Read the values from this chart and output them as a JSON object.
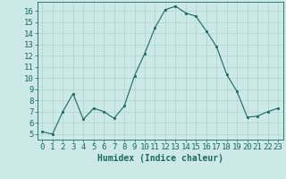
{
  "x": [
    0,
    1,
    2,
    3,
    4,
    5,
    6,
    7,
    8,
    9,
    10,
    11,
    12,
    13,
    14,
    15,
    16,
    17,
    18,
    19,
    20,
    21,
    22,
    23
  ],
  "y": [
    5.2,
    5.0,
    7.0,
    8.6,
    6.3,
    7.3,
    7.0,
    6.4,
    7.5,
    10.2,
    12.2,
    14.5,
    16.1,
    16.4,
    15.8,
    15.5,
    14.2,
    12.8,
    10.3,
    8.8,
    6.5,
    6.6,
    7.0,
    7.3
  ],
  "line_color": "#1a6b5a",
  "marker": "s",
  "marker_size": 2.0,
  "bg_color": "#cce9e7",
  "grid_color": "#aad4d0",
  "xlabel": "Humidex (Indice chaleur)",
  "xlim": [
    -0.5,
    23.5
  ],
  "ylim": [
    4.5,
    16.8
  ],
  "yticks": [
    5,
    6,
    7,
    8,
    9,
    10,
    11,
    12,
    13,
    14,
    15,
    16
  ],
  "xticks": [
    0,
    1,
    2,
    3,
    4,
    5,
    6,
    7,
    8,
    9,
    10,
    11,
    12,
    13,
    14,
    15,
    16,
    17,
    18,
    19,
    20,
    21,
    22,
    23
  ],
  "xtick_labels": [
    "0",
    "1",
    "2",
    "3",
    "4",
    "5",
    "6",
    "7",
    "8",
    "9",
    "10",
    "11",
    "12",
    "13",
    "14",
    "15",
    "16",
    "17",
    "18",
    "19",
    "20",
    "21",
    "22",
    "23"
  ],
  "axis_color": "#1a6b5a",
  "tick_color": "#1a6b5a",
  "label_fontsize": 7,
  "tick_fontsize": 6.5
}
